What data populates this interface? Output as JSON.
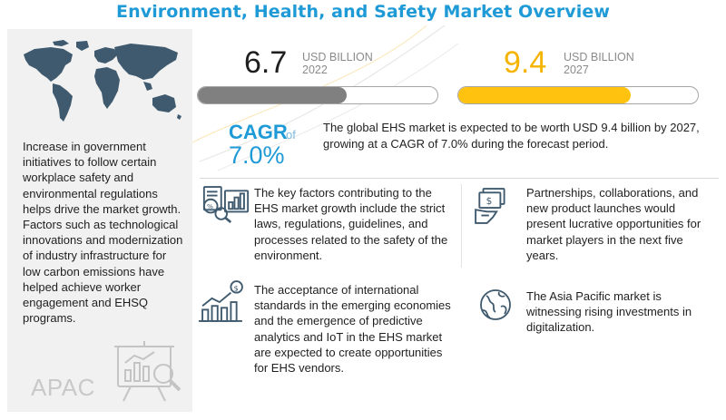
{
  "title": "Environment, Health, and Safety Market Overview",
  "left_panel": {
    "text": "Increase in government initiatives to follow certain workplace safety and environmental regulations helps drive the market growth. Factors such as technological innovations and modernization of industry infrastructure for low carbon emissions have helped achieve worker engagement and EHSQ programs.",
    "region_label": "APAC"
  },
  "stats": {
    "start": {
      "value": "6.7",
      "unit": "USD BILLION",
      "year": "2022",
      "fill_fraction": 0.62
    },
    "end": {
      "value": "9.4",
      "unit": "USD BILLION",
      "year": "2027",
      "fill_fraction": 0.72
    }
  },
  "cagr": {
    "word": "CAGR",
    "of": "of",
    "value": "7.0%"
  },
  "summary": "The global EHS market is expected to be worth USD 9.4 billion by 2027, growing at a CAGR of 7.0% during the forecast period.",
  "factors": [
    {
      "icon": "report-analysis-icon",
      "text": "The key factors contributing to the EHS market growth include the strict laws, regulations, guidelines, and processes related to the safety of the environment."
    },
    {
      "icon": "money-contract-icon",
      "text": "Partnerships, collaborations, and new product launches would present lucrative opportunities for market players in the next five years."
    },
    {
      "icon": "growth-chart-icon",
      "text": "The acceptance of international standards in the emerging economies and the emergence of predictive analytics and IoT in the EHS market are expected to create opportunities for EHS vendors."
    },
    {
      "icon": "globe-icon",
      "text": "The Asia Pacific market is witnessing rising investments in digitalization."
    }
  ],
  "colors": {
    "title": "#1e9ad6",
    "bar_2022": "#808080",
    "bar_2027": "#ffc20e",
    "value_2022": "#1f1f1f",
    "value_2027": "#f5b400",
    "cagr": "#1e9ad6"
  },
  "chart_data": {
    "type": "bar",
    "categories": [
      "2022",
      "2027"
    ],
    "values": [
      6.7,
      9.4
    ],
    "unit": "USD BILLION",
    "cagr": "7.0%"
  }
}
